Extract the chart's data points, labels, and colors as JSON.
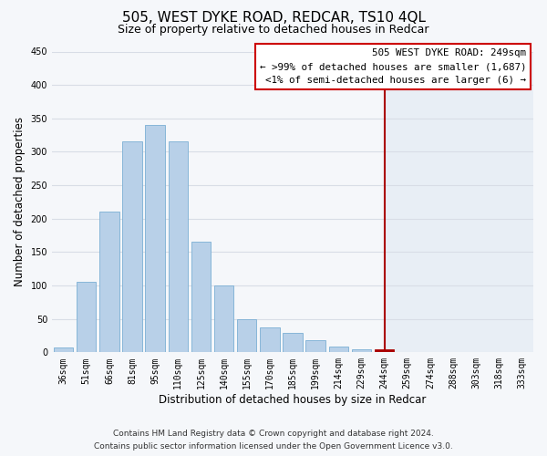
{
  "title": "505, WEST DYKE ROAD, REDCAR, TS10 4QL",
  "subtitle": "Size of property relative to detached houses in Redcar",
  "xlabel": "Distribution of detached houses by size in Redcar",
  "ylabel": "Number of detached properties",
  "bar_labels": [
    "36sqm",
    "51sqm",
    "66sqm",
    "81sqm",
    "95sqm",
    "110sqm",
    "125sqm",
    "140sqm",
    "155sqm",
    "170sqm",
    "185sqm",
    "199sqm",
    "214sqm",
    "229sqm",
    "244sqm",
    "259sqm",
    "274sqm",
    "288sqm",
    "303sqm",
    "318sqm",
    "333sqm"
  ],
  "bar_values": [
    7,
    106,
    210,
    315,
    340,
    315,
    165,
    100,
    50,
    37,
    29,
    18,
    9,
    5,
    5,
    0,
    0,
    0,
    0,
    0,
    0
  ],
  "bar_color": "#b8d0e8",
  "bar_edge_color": "#7bafd4",
  "highlight_bar_index": 14,
  "highlight_bar_color": "#aa0000",
  "vline_x": 14,
  "vline_color": "#aa0000",
  "annotation_title": "505 WEST DYKE ROAD: 249sqm",
  "annotation_line1": "← >99% of detached houses are smaller (1,687)",
  "annotation_line2": "<1% of semi-detached houses are larger (6) →",
  "annotation_box_color": "#ffffff",
  "annotation_border_color": "#cc0000",
  "ylim": [
    0,
    450
  ],
  "yticks": [
    0,
    50,
    100,
    150,
    200,
    250,
    300,
    350,
    400,
    450
  ],
  "footer_line1": "Contains HM Land Registry data © Crown copyright and database right 2024.",
  "footer_line2": "Contains public sector information licensed under the Open Government Licence v3.0.",
  "bg_color_left": "#f5f7fa",
  "bg_color_right": "#e8eef5",
  "grid_color": "#d8dde6",
  "title_fontsize": 11,
  "subtitle_fontsize": 9,
  "tick_fontsize": 7,
  "ylabel_fontsize": 8.5,
  "xlabel_fontsize": 8.5,
  "footer_fontsize": 6.5
}
